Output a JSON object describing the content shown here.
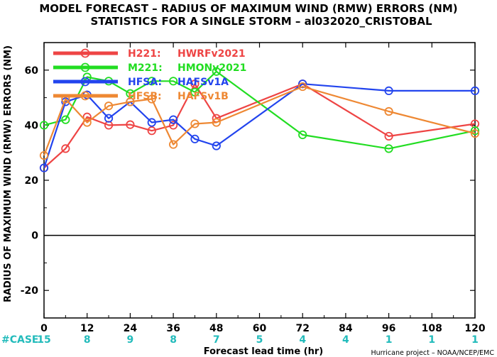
{
  "chart_data": {
    "type": "line",
    "title": "MODEL FORECAST – RADIUS OF MAXIMUM WIND (RMW) ERRORS (NM)",
    "subtitle": "STATISTICS FOR A SINGLE STORM – al032020_CRISTOBAL",
    "xlabel": "Forecast lead time (hr)",
    "ylabel": "RADIUS OF MAXIMUM WIND (RMW) ERRORS (NM)",
    "xlim": [
      0,
      120
    ],
    "ylim": [
      -30,
      70
    ],
    "xticks": [
      0,
      12,
      24,
      36,
      48,
      60,
      72,
      84,
      96,
      108,
      120
    ],
    "yticks": [
      -20,
      0,
      20,
      40,
      60
    ],
    "ytick_labels": [
      "-20",
      "0",
      "20",
      "40",
      "60"
    ],
    "zero_line": true,
    "grid": false,
    "legend_position": "top-left",
    "case_label": "#CASE",
    "cases": [
      {
        "x": 0,
        "label": "15"
      },
      {
        "x": 12,
        "label": "8"
      },
      {
        "x": 24,
        "label": "9"
      },
      {
        "x": 36,
        "label": "8"
      },
      {
        "x": 48,
        "label": "7"
      },
      {
        "x": 60,
        "label": "5"
      },
      {
        "x": 72,
        "label": "4"
      },
      {
        "x": 84,
        "label": "4"
      },
      {
        "x": 96,
        "label": "1"
      },
      {
        "x": 108,
        "label": "1"
      },
      {
        "x": 120,
        "label": "1"
      }
    ],
    "footer": "Hurricane project – NOAA/NCEP/EMC",
    "series": [
      {
        "name": "H221:",
        "desc": "HWRFv2021",
        "color": "#ee4444",
        "x": [
          0,
          6,
          12,
          18,
          24,
          30,
          36,
          42,
          48,
          72,
          96,
          120
        ],
        "y": [
          24.5,
          31.5,
          43,
          40,
          40.2,
          38,
          40,
          55,
          42.5,
          55,
          36,
          40.5
        ]
      },
      {
        "name": "M221:",
        "desc": "HMONv2021",
        "color": "#22dd22",
        "x": [
          0,
          6,
          12,
          18,
          24,
          30,
          36,
          42,
          48,
          72,
          96,
          120
        ],
        "y": [
          40,
          42,
          57.5,
          56,
          51.5,
          56,
          56,
          52,
          59.5,
          36.5,
          31.5,
          38
        ]
      },
      {
        "name": "HFSA:",
        "desc": "HAFSv1A",
        "color": "#2244ee",
        "x": [
          0,
          6,
          12,
          18,
          24,
          30,
          36,
          42,
          48,
          72,
          96,
          120
        ],
        "y": [
          24.5,
          48.5,
          51,
          42.5,
          48.5,
          41,
          42,
          35,
          32.5,
          55,
          52.5,
          52.5
        ]
      },
      {
        "name": "HFSB:",
        "desc": "HAFSv1B",
        "color": "#ee8833",
        "x": [
          0,
          6,
          12,
          18,
          24,
          30,
          36,
          42,
          48,
          72,
          96,
          120
        ],
        "y": [
          29,
          49.5,
          41,
          47,
          48.5,
          49.5,
          33,
          40.5,
          41,
          54,
          45,
          37
        ]
      }
    ]
  }
}
